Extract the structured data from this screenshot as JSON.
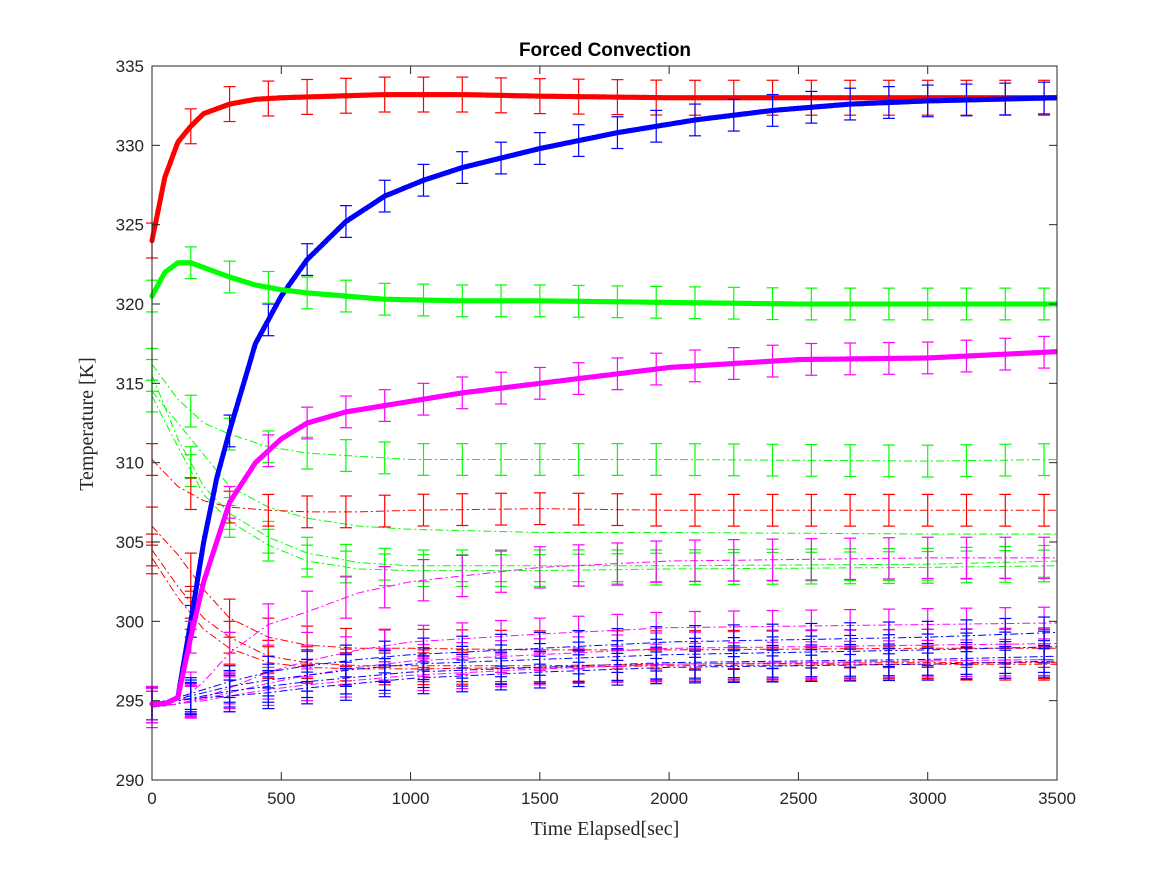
{
  "chart_data": {
    "type": "line",
    "title": "Forced Convection",
    "xlabel": "Time Elapsed[sec]",
    "ylabel": "Temperature [K]",
    "xlim": [
      0,
      3500
    ],
    "ylim": [
      290,
      335
    ],
    "xticks": [
      "0",
      "500",
      "1000",
      "1500",
      "2000",
      "2500",
      "3000",
      "3500"
    ],
    "yticks": [
      "290",
      "295",
      "300",
      "305",
      "310",
      "315",
      "320",
      "325",
      "330",
      "335"
    ],
    "grid": false,
    "legend": "none",
    "series": [
      {
        "color": "#ff0000",
        "style": "solid-marker",
        "err": 1.1,
        "x": [
          0,
          50,
          100,
          150,
          200,
          300,
          400,
          500,
          700,
          900,
          1200,
          1500,
          2000,
          2500,
          3000,
          3500
        ],
        "y": [
          324,
          328,
          330.2,
          331.2,
          332,
          332.6,
          332.9,
          333,
          333.1,
          333.2,
          333.2,
          333.1,
          333,
          333,
          333,
          333
        ]
      },
      {
        "color": "#0000ff",
        "style": "solid-marker",
        "err": 1.0,
        "x": [
          0,
          50,
          100,
          150,
          200,
          250,
          300,
          400,
          500,
          600,
          750,
          900,
          1050,
          1200,
          1500,
          1800,
          2100,
          2400,
          2700,
          3000,
          3500
        ],
        "y": [
          294.8,
          294.8,
          295.2,
          300,
          305,
          309,
          312,
          317.5,
          320.5,
          322.8,
          325.2,
          326.8,
          327.8,
          328.6,
          329.8,
          330.8,
          331.6,
          332.2,
          332.6,
          332.8,
          333
        ]
      },
      {
        "color": "#00ff00",
        "style": "solid-marker",
        "err": 1.0,
        "x": [
          0,
          50,
          100,
          150,
          200,
          300,
          400,
          500,
          600,
          750,
          900,
          1200,
          1500,
          2000,
          2500,
          3000,
          3500
        ],
        "y": [
          320.5,
          322,
          322.6,
          322.6,
          322.3,
          321.7,
          321.2,
          320.9,
          320.7,
          320.5,
          320.3,
          320.2,
          320.2,
          320.1,
          320,
          320,
          320
        ]
      },
      {
        "color": "#ff00ff",
        "style": "solid-marker",
        "err": 1.0,
        "x": [
          0,
          50,
          100,
          150,
          200,
          300,
          400,
          500,
          600,
          750,
          900,
          1050,
          1200,
          1500,
          2000,
          2500,
          3000,
          3500
        ],
        "y": [
          294.8,
          294.8,
          295.2,
          299,
          302.5,
          307.5,
          310,
          311.5,
          312.5,
          313.2,
          313.6,
          314,
          314.4,
          315,
          316,
          316.5,
          316.6,
          317
        ]
      },
      {
        "color": "#00ff00",
        "style": "dashdot",
        "err": 1.0,
        "x": [
          0,
          100,
          200,
          300,
          450,
          600,
          800,
          1000,
          1500,
          2000,
          3000,
          3500
        ],
        "y": [
          316.2,
          314,
          312.5,
          311.8,
          311,
          310.6,
          310.4,
          310.2,
          310.2,
          310.2,
          310.1,
          310.2
        ]
      },
      {
        "color": "#00ff00",
        "style": "dashdot",
        "err": 0,
        "x": [
          0,
          100,
          200,
          300,
          450,
          600,
          800,
          1000,
          1500,
          2000,
          3000,
          3500
        ],
        "y": [
          314.5,
          312.5,
          310.5,
          308.5,
          307.2,
          306.5,
          306,
          305.8,
          305.6,
          305.6,
          305.5,
          305.5
        ]
      },
      {
        "color": "#00ff00",
        "style": "dashdot",
        "err": 1.0,
        "x": [
          0,
          100,
          200,
          300,
          450,
          600,
          800,
          1000,
          1500,
          2000,
          3000,
          3500
        ],
        "y": [
          315.5,
          311.5,
          308.5,
          306.8,
          305.3,
          304.3,
          303.7,
          303.5,
          303.5,
          303.5,
          303.6,
          303.8
        ]
      },
      {
        "color": "#00ff00",
        "style": "dashdot",
        "err": 1.0,
        "x": [
          0,
          100,
          200,
          300,
          450,
          600,
          800,
          1000,
          1500,
          2000,
          3000,
          3500
        ],
        "y": [
          314.2,
          311,
          308,
          306.3,
          304.8,
          303.8,
          303.3,
          303.2,
          303.2,
          303.3,
          303.4,
          303.5
        ]
      },
      {
        "color": "#ff0000",
        "style": "dashdot",
        "err": 1.0,
        "x": [
          0,
          100,
          200,
          300,
          450,
          600,
          800,
          1000,
          1500,
          2000,
          3000,
          3500
        ],
        "y": [
          310.2,
          308.5,
          307.6,
          307.2,
          307,
          306.9,
          306.9,
          307,
          307.1,
          307,
          307,
          307
        ]
      },
      {
        "color": "#ff0000",
        "style": "dashdot",
        "err": 1.2,
        "x": [
          0,
          100,
          200,
          300,
          450,
          600,
          800,
          1000,
          1500,
          2000,
          3000,
          3500
        ],
        "y": [
          306,
          304.2,
          302,
          300.2,
          299,
          298.5,
          298.3,
          298.3,
          298.2,
          298.2,
          298.3,
          298.3
        ]
      },
      {
        "color": "#ff0000",
        "style": "dashdot",
        "err": 1.0,
        "x": [
          0,
          100,
          200,
          300,
          450,
          600,
          800,
          1000,
          1500,
          2000,
          3000,
          3500
        ],
        "y": [
          304.5,
          302.2,
          300.2,
          299,
          297.8,
          297.4,
          297.2,
          297.2,
          297.2,
          297.3,
          297.4,
          297.4
        ]
      },
      {
        "color": "#ff0000",
        "style": "dashdot",
        "err": 1.0,
        "x": [
          0,
          100,
          200,
          300,
          450,
          600,
          800,
          1000,
          1500,
          2000,
          3000,
          3500
        ],
        "y": [
          304,
          301.5,
          299.5,
          298.3,
          297.4,
          297.1,
          297,
          297,
          297.1,
          297.2,
          297.3,
          297.3
        ]
      },
      {
        "color": "#ff00ff",
        "style": "dashdot",
        "err": 1.3,
        "x": [
          0,
          100,
          200,
          300,
          450,
          600,
          800,
          1000,
          1500,
          2000,
          3000,
          3500
        ],
        "y": [
          294.6,
          294.8,
          296.2,
          298,
          299.8,
          300.6,
          301.8,
          302.5,
          303.4,
          303.8,
          304,
          304
        ]
      },
      {
        "color": "#ff00ff",
        "style": "dashdot",
        "err": 1.0,
        "x": [
          0,
          100,
          200,
          300,
          450,
          600,
          800,
          1000,
          1500,
          2000,
          3000,
          3500
        ],
        "y": [
          294.6,
          294.8,
          295.2,
          295.8,
          296.8,
          297.5,
          298.2,
          298.7,
          299.2,
          299.6,
          299.8,
          299.9
        ]
      },
      {
        "color": "#ff00ff",
        "style": "dashdot",
        "err": 1.0,
        "x": [
          0,
          100,
          200,
          300,
          450,
          600,
          800,
          1000,
          1500,
          2000,
          3000,
          3500
        ],
        "y": [
          294.6,
          294.8,
          295.1,
          295.5,
          296.1,
          296.6,
          297.1,
          297.5,
          297.9,
          298.3,
          298.5,
          298.6
        ]
      },
      {
        "color": "#ff00ff",
        "style": "dashdot",
        "err": 1.0,
        "x": [
          0,
          100,
          200,
          300,
          450,
          600,
          800,
          1000,
          1500,
          2000,
          3000,
          3500
        ],
        "y": [
          294.6,
          294.8,
          295,
          295.3,
          295.7,
          296,
          296.3,
          296.6,
          297,
          297.3,
          297.5,
          297.6
        ]
      },
      {
        "color": "#0000ff",
        "style": "dashdot",
        "err": 1.0,
        "x": [
          0,
          100,
          200,
          300,
          450,
          600,
          800,
          1000,
          1500,
          2000,
          3000,
          3500
        ],
        "y": [
          294.8,
          295.2,
          295.7,
          296.2,
          296.8,
          297.2,
          297.6,
          297.9,
          298.3,
          298.7,
          299,
          299.3
        ]
      },
      {
        "color": "#0000ff",
        "style": "dashdot",
        "err": 1.0,
        "x": [
          0,
          100,
          200,
          300,
          450,
          600,
          800,
          1000,
          1500,
          2000,
          3000,
          3500
        ],
        "y": [
          294.8,
          295.1,
          295.5,
          295.9,
          296.3,
          296.6,
          297,
          297.3,
          297.6,
          297.9,
          298.2,
          298.4
        ]
      },
      {
        "color": "#0000ff",
        "style": "dashdot",
        "err": 1.0,
        "x": [
          0,
          100,
          200,
          300,
          450,
          600,
          800,
          1000,
          1500,
          2000,
          3000,
          3500
        ],
        "y": [
          294.8,
          295,
          295.3,
          295.6,
          295.9,
          296.2,
          296.5,
          296.8,
          297.1,
          297.4,
          297.6,
          297.8
        ]
      },
      {
        "color": "#0000ff",
        "style": "dashdot",
        "err": 1.0,
        "x": [
          0,
          100,
          200,
          300,
          450,
          600,
          800,
          1000,
          1500,
          2000,
          3000,
          3500
        ],
        "y": [
          294.8,
          295,
          295.2,
          295.3,
          295.5,
          295.8,
          296.1,
          296.4,
          296.8,
          297.1,
          297.3,
          297.5
        ]
      }
    ]
  }
}
